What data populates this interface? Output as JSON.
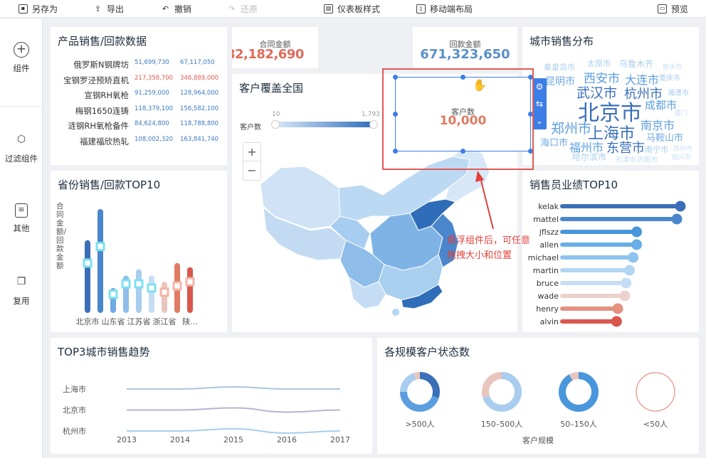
{
  "toolbar": {
    "save_as": "另存为",
    "export": "导出",
    "undo": "撤销",
    "redo": "还原",
    "dashboard_style": "仪表板样式",
    "mobile_layout": "移动端布局",
    "preview": "预览"
  },
  "sidebar": {
    "items": [
      {
        "label": "组件",
        "icon": "plus-circle-icon"
      },
      {
        "label": "过滤组件",
        "icon": "cube-icon"
      },
      {
        "label": "其他",
        "icon": "document-icon"
      },
      {
        "label": "复用",
        "icon": "copy-icon"
      }
    ]
  },
  "product_sales": {
    "title": "产品销售/回款数据",
    "rows": [
      {
        "name": "俄罗斯N钢牌坊",
        "a": "51,699,730",
        "b": "67,117,050",
        "color": "#3a78c4"
      },
      {
        "name": "宝钢罗泾预矫直机",
        "a": "217,358,700",
        "b": "346,889,000",
        "color": "#e05a4e"
      },
      {
        "name": "宣钢RH氧枪",
        "a": "91,259,000",
        "b": "128,964,000",
        "color": "#3a78c4"
      },
      {
        "name": "梅钢1650连铸",
        "a": "118,379,100",
        "b": "156,582,100",
        "color": "#3a78c4"
      },
      {
        "name": "涟钢RH氧枪备件",
        "a": "84,624,800",
        "b": "118,788,800",
        "color": "#3a78c4"
      },
      {
        "name": "福建福欣热轧",
        "a": "108,002,320",
        "b": "163,841,740",
        "color": "#3a78c4"
      }
    ]
  },
  "contract": {
    "label": "合同金额",
    "value": "82,182,690"
  },
  "payment": {
    "label": "回款金额",
    "value": "671,323,650"
  },
  "customer_count": {
    "label": "客户数",
    "value": "10,000"
  },
  "coverage": {
    "title": "客户覆盖全国",
    "legend_label": "客户数",
    "min": "10",
    "max": "1,793",
    "zoom_in": "+",
    "zoom_out": "−"
  },
  "city_cloud": {
    "title": "城市销售分布"
  },
  "province": {
    "title": "省份销售/回款TOP10",
    "ylabel": "合同金额/回款金额",
    "categories": [
      "北京市",
      "山东省",
      "江苏省",
      "浙江省",
      "陕..."
    ]
  },
  "salesman": {
    "title": "销售员业绩TOP10",
    "names": [
      "kelak",
      "mattel",
      "jflszz",
      "allen",
      "michael",
      "martin",
      "bruce",
      "wade",
      "henry",
      "alvin"
    ]
  },
  "trend": {
    "title": "TOP3城市销售趋势",
    "cities": [
      "上海市",
      "北京市",
      "杭州市"
    ],
    "years": [
      "2013",
      "2014",
      "2015",
      "2016",
      "2017"
    ]
  },
  "scale": {
    "title": "各规模客户状态数",
    "xlabel": "客户规模",
    "labels": [
      ">500人",
      "150–500人",
      "50–150人",
      "<50人"
    ]
  },
  "annotation": {
    "line1": "悬浮组件后，可任意",
    "line2": "拖拽大小和位置"
  },
  "chart_data": [
    {
      "type": "bar",
      "title": "省份销售/回款TOP10",
      "ylabel": "合同金额/回款金额",
      "categories": [
        "北京市",
        "",
        "山东省",
        "",
        "江苏省",
        "",
        "浙江省",
        "",
        "陕..."
      ],
      "series": [
        {
          "values": [
            70,
            100,
            24,
            36,
            42,
            36,
            30,
            48,
            44
          ]
        },
        {
          "values": [
            48,
            64,
            18,
            28,
            28,
            24,
            20,
            26,
            30
          ]
        }
      ]
    },
    {
      "type": "bar",
      "title": "销售员业绩TOP10",
      "categories": [
        "kelak",
        "mattel",
        "jflszz",
        "allen",
        "michael",
        "martin",
        "bruce",
        "wade",
        "henry",
        "alvin"
      ],
      "values": [
        100,
        97,
        63,
        63,
        60,
        57,
        54,
        53,
        47,
        46
      ]
    },
    {
      "type": "line",
      "title": "TOP3城市销售趋势",
      "x": [
        "2013",
        "2014",
        "2015",
        "2016",
        "2017"
      ],
      "series": [
        {
          "name": "上海市",
          "values": [
            3.0,
            3.0,
            3.1,
            3.0,
            3.0
          ]
        },
        {
          "name": "北京市",
          "values": [
            2.0,
            2.0,
            2.1,
            1.9,
            2.0
          ]
        },
        {
          "name": "杭州市",
          "values": [
            1.0,
            1.0,
            1.1,
            0.9,
            1.0
          ]
        }
      ]
    },
    {
      "type": "pie",
      "title": "各规模客户状态数",
      "xlabel": "客户规模",
      "categories": [
        ">500人",
        "150–500人",
        "50–150人",
        "<50人"
      ],
      "rings": [
        [
          0.3,
          0.45,
          0.2,
          0.05
        ],
        [
          0.7,
          0.3
        ],
        [
          0.92,
          0.08
        ],
        [
          1.0
        ]
      ]
    }
  ],
  "colors": {
    "accent": "#3d7ee6",
    "dark_blue": "#3a6fb8",
    "mid_blue": "#5b9ee0",
    "light_blue": "#a9cdee",
    "red": "#d9574c",
    "annotation": "#e2403b"
  }
}
